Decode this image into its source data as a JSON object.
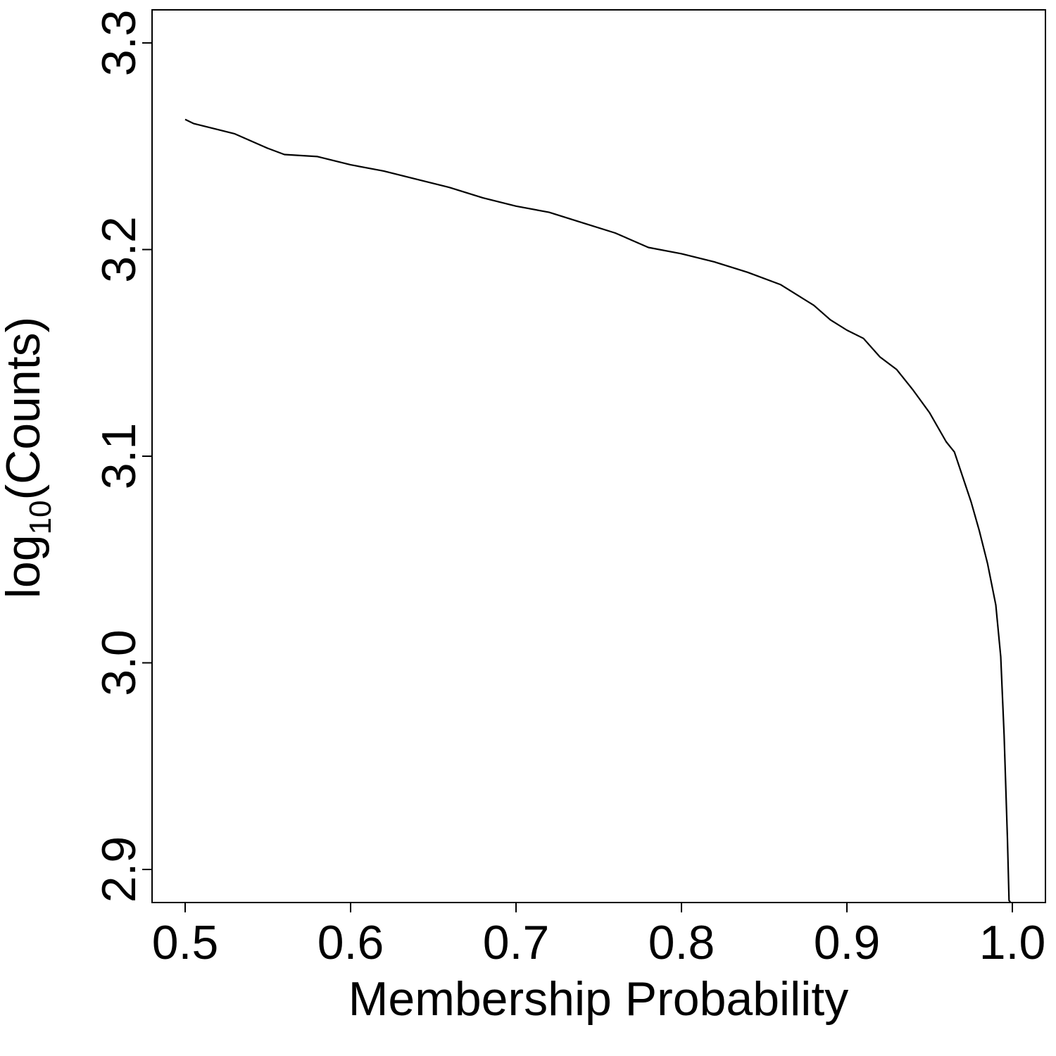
{
  "chart_data": {
    "type": "line",
    "title": "",
    "xlabel": "Membership Probability",
    "ylabel_main": "log",
    "ylabel_sub": "10",
    "ylabel_tail": "(Counts)",
    "xlim": [
      0.48,
      1.02
    ],
    "ylim": [
      2.884,
      3.316
    ],
    "xticks": [
      0.5,
      0.6,
      0.7,
      0.8,
      0.9,
      1.0
    ],
    "xtick_labels": [
      "0.5",
      "0.6",
      "0.7",
      "0.8",
      "0.9",
      "1.0"
    ],
    "yticks": [
      2.9,
      3.0,
      3.1,
      3.2,
      3.3
    ],
    "ytick_labels": [
      "2.9",
      "3.0",
      "3.1",
      "3.2",
      "3.3"
    ],
    "grid": false,
    "series": [
      {
        "color": "#000000",
        "x": [
          0.5,
          0.505,
          0.52,
          0.53,
          0.55,
          0.56,
          0.58,
          0.6,
          0.62,
          0.64,
          0.66,
          0.68,
          0.7,
          0.72,
          0.74,
          0.76,
          0.78,
          0.8,
          0.82,
          0.84,
          0.86,
          0.87,
          0.88,
          0.89,
          0.9,
          0.91,
          0.92,
          0.93,
          0.94,
          0.95,
          0.96,
          0.965,
          0.97,
          0.975,
          0.98,
          0.985,
          0.99,
          0.993,
          0.995,
          0.997,
          0.998,
          0.999
        ],
        "y": [
          3.263,
          3.261,
          3.258,
          3.256,
          3.249,
          3.246,
          3.245,
          3.241,
          3.238,
          3.234,
          3.23,
          3.225,
          3.221,
          3.218,
          3.213,
          3.208,
          3.201,
          3.198,
          3.194,
          3.189,
          3.183,
          3.178,
          3.173,
          3.166,
          3.161,
          3.157,
          3.148,
          3.142,
          3.132,
          3.121,
          3.107,
          3.102,
          3.09,
          3.078,
          3.064,
          3.048,
          3.028,
          3.003,
          2.965,
          2.915,
          2.885,
          2.87
        ]
      }
    ]
  }
}
